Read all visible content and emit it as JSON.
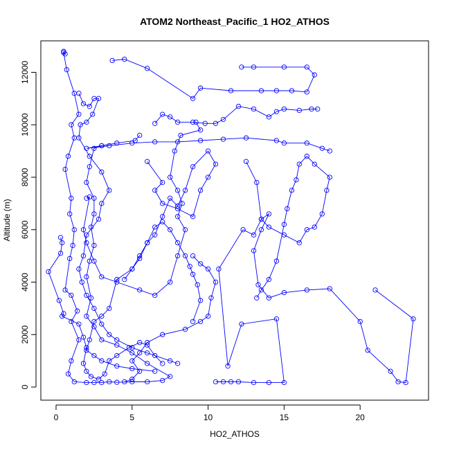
{
  "chart_data": {
    "type": "line",
    "title": "ATOM2 Northeast_Pacific_1 HO2_ATHOS",
    "xlabel": "HO2_ATHOS",
    "ylabel": "Altitude (m)",
    "xlim": [
      -1,
      24.5
    ],
    "ylim": [
      -500,
      13200
    ],
    "xticks": [
      0,
      5,
      10,
      15,
      20
    ],
    "yticks": [
      0,
      2000,
      4000,
      6000,
      8000,
      10000,
      12000
    ],
    "xtick_labels": [
      "0",
      "5",
      "10",
      "15",
      "20"
    ],
    "ytick_labels": [
      "0",
      "2000",
      "4000",
      "6000",
      "8000",
      "10000",
      "12000"
    ],
    "grid": false,
    "line_color": "#0000ff",
    "marker": "open-circle",
    "series": [
      {
        "name": "",
        "points": [
          [
            0.5,
            12800
          ],
          [
            0.6,
            12700
          ],
          [
            0.5,
            12750
          ],
          [
            0.7,
            12100
          ],
          [
            1.2,
            11200
          ],
          [
            1.5,
            10400
          ],
          [
            1.0,
            10000
          ],
          [
            1.2,
            9500
          ],
          [
            0.8,
            8800
          ],
          [
            0.6,
            8300
          ],
          [
            1.0,
            7200
          ],
          [
            0.9,
            6600
          ],
          [
            1.2,
            6000
          ],
          [
            1.1,
            5400
          ],
          [
            0.9,
            4900
          ],
          [
            0.6,
            3700
          ],
          [
            1.0,
            3500
          ],
          [
            1.4,
            2900
          ],
          [
            1.0,
            2500
          ],
          [
            1.5,
            1800
          ],
          [
            1.0,
            1000
          ],
          [
            0.8,
            500
          ],
          [
            1.2,
            200
          ],
          [
            2.0,
            170
          ],
          [
            2.5,
            170
          ],
          [
            3.0,
            170
          ],
          [
            3.5,
            200
          ],
          [
            4.0,
            180
          ],
          [
            5.0,
            200
          ],
          [
            6.0,
            200
          ],
          [
            7.0,
            250
          ],
          [
            7.5,
            400
          ],
          [
            6.0,
            900
          ],
          [
            5.0,
            1300
          ],
          [
            4.0,
            1600
          ],
          [
            3.0,
            1800
          ],
          [
            2.5,
            2300
          ],
          [
            2.0,
            2700
          ],
          [
            2.3,
            3400
          ],
          [
            2.0,
            4200
          ],
          [
            2.2,
            4800
          ],
          [
            2.5,
            5400
          ],
          [
            2.3,
            6100
          ],
          [
            2.5,
            6600
          ],
          [
            2.5,
            7200
          ],
          [
            2.0,
            7800
          ],
          [
            2.2,
            8400
          ],
          [
            2.5,
            9100
          ],
          [
            3.0,
            9200
          ]
        ]
      },
      {
        "name": "",
        "points": [
          [
            3.7,
            12450
          ],
          [
            4.5,
            12500
          ],
          [
            6.0,
            12150
          ],
          [
            9.0,
            11000
          ],
          [
            9.5,
            11400
          ],
          [
            11.5,
            11300
          ],
          [
            13.5,
            11300
          ],
          [
            14.5,
            11300
          ],
          [
            15.5,
            11300
          ],
          [
            16.5,
            11250
          ],
          [
            17.0,
            11900
          ],
          [
            16.5,
            12200
          ],
          [
            15.0,
            12200
          ],
          [
            13.0,
            12200
          ],
          [
            12.2,
            12200
          ]
        ]
      },
      {
        "name": "",
        "points": [
          [
            6.5,
            10050
          ],
          [
            7.0,
            10400
          ],
          [
            7.5,
            10300
          ],
          [
            8.0,
            10100
          ],
          [
            9.0,
            10100
          ],
          [
            9.8,
            10050
          ],
          [
            10.5,
            10050
          ],
          [
            11.0,
            10200
          ],
          [
            12.0,
            10700
          ],
          [
            13.0,
            10600
          ],
          [
            14.0,
            10300
          ],
          [
            14.5,
            10500
          ],
          [
            15.0,
            10600
          ],
          [
            16.0,
            10550
          ],
          [
            16.8,
            10600
          ],
          [
            17.2,
            10600
          ]
        ]
      },
      {
        "name": "",
        "points": [
          [
            5.5,
            9600
          ],
          [
            5.2,
            9400
          ],
          [
            4.0,
            9300
          ],
          [
            3.0,
            9200
          ],
          [
            2.0,
            9100
          ],
          [
            3.5,
            9200
          ],
          [
            5.0,
            9300
          ],
          [
            6.5,
            9350
          ],
          [
            8.0,
            9350
          ],
          [
            9.5,
            9400
          ],
          [
            11.0,
            9450
          ],
          [
            12.5,
            9500
          ],
          [
            14.5,
            9400
          ],
          [
            15.0,
            9300
          ],
          [
            16.5,
            9300
          ],
          [
            17.5,
            9100
          ],
          [
            18.0,
            9000
          ]
        ]
      },
      {
        "name": "",
        "points": [
          [
            6.0,
            8600
          ],
          [
            7.0,
            7800
          ],
          [
            6.5,
            7500
          ],
          [
            7.0,
            7000
          ],
          [
            8.0,
            6800
          ],
          [
            9.0,
            6500
          ],
          [
            9.5,
            7500
          ],
          [
            10.0,
            8000
          ],
          [
            10.5,
            8500
          ],
          [
            10.0,
            9000
          ],
          [
            9.0,
            8400
          ],
          [
            8.5,
            7500
          ],
          [
            8.0,
            6900
          ],
          [
            7.5,
            7200
          ],
          [
            7.0,
            6500
          ],
          [
            6.5,
            5800
          ],
          [
            6.0,
            5500
          ],
          [
            5.5,
            4900
          ],
          [
            5.0,
            4500
          ],
          [
            4.0,
            4100
          ],
          [
            3.5,
            3000
          ],
          [
            3.0,
            2700
          ],
          [
            2.5,
            2500
          ],
          [
            2.2,
            1800
          ],
          [
            2.0,
            1400
          ],
          [
            2.5,
            1200
          ],
          [
            3.0,
            1000
          ],
          [
            4.0,
            800
          ],
          [
            5.0,
            700
          ],
          [
            6.5,
            600
          ]
        ]
      },
      {
        "name": "",
        "points": [
          [
            9.0,
            5000
          ],
          [
            9.5,
            4700
          ],
          [
            10.0,
            4500
          ],
          [
            10.5,
            4000
          ],
          [
            10.2,
            3400
          ],
          [
            10.0,
            2700
          ],
          [
            9.5,
            2500
          ],
          [
            8.5,
            2200
          ],
          [
            7.0,
            2000
          ],
          [
            6.0,
            1700
          ],
          [
            5.5,
            1300
          ],
          [
            5.0,
            1000
          ],
          [
            5.5,
            600
          ],
          [
            5.0,
            300
          ],
          [
            4.5,
            200
          ]
        ]
      },
      {
        "name": "",
        "points": [
          [
            10.5,
            200
          ],
          [
            11.0,
            200
          ],
          [
            11.5,
            200
          ],
          [
            12.0,
            200
          ],
          [
            13.0,
            170
          ],
          [
            14.0,
            170
          ],
          [
            15.0,
            170
          ],
          [
            14.5,
            2600
          ],
          [
            12.2,
            2400
          ],
          [
            11.3,
            800
          ],
          [
            10.7,
            4500
          ],
          [
            12.3,
            6000
          ],
          [
            13.0,
            5800
          ],
          [
            13.5,
            6400
          ],
          [
            14.0,
            6600
          ],
          [
            13.5,
            6000
          ],
          [
            13.0,
            5200
          ],
          [
            13.3,
            3900
          ],
          [
            14.0,
            3400
          ],
          [
            15.0,
            3600
          ],
          [
            16.5,
            3700
          ],
          [
            18.0,
            3750
          ],
          [
            20.0,
            2500
          ],
          [
            20.5,
            1400
          ],
          [
            22.0,
            600
          ],
          [
            22.5,
            200
          ],
          [
            23.0,
            170
          ],
          [
            23.5,
            2600
          ],
          [
            21.0,
            3700
          ]
        ]
      },
      {
        "name": "",
        "points": [
          [
            12.5,
            8600
          ],
          [
            13.2,
            7800
          ],
          [
            13.5,
            6400
          ],
          [
            14.0,
            6100
          ],
          [
            15.0,
            5800
          ],
          [
            16.0,
            5500
          ],
          [
            16.5,
            6000
          ],
          [
            17.0,
            6100
          ],
          [
            17.5,
            6600
          ],
          [
            17.8,
            7500
          ],
          [
            18.0,
            8000
          ],
          [
            17.0,
            8500
          ],
          [
            16.5,
            8800
          ],
          [
            16.0,
            8500
          ],
          [
            15.8,
            7900
          ],
          [
            15.5,
            7500
          ],
          [
            15.2,
            6800
          ],
          [
            15.0,
            6200
          ],
          [
            14.5,
            4800
          ],
          [
            14.0,
            4100
          ],
          [
            13.5,
            3700
          ],
          [
            13.2,
            3400
          ]
        ]
      },
      {
        "name": "",
        "points": [
          [
            0.3,
            5700
          ],
          [
            0.4,
            5500
          ],
          [
            0.3,
            5100
          ],
          [
            -0.5,
            4400
          ],
          [
            0.2,
            3300
          ],
          [
            0.5,
            2800
          ],
          [
            0.4,
            2700
          ],
          [
            1.5,
            2400
          ],
          [
            1.8,
            1900
          ],
          [
            2.0,
            1500
          ],
          [
            1.8,
            900
          ],
          [
            2.0,
            600
          ],
          [
            2.3,
            400
          ],
          [
            2.8,
            300
          ],
          [
            3.2,
            500
          ],
          [
            3.5,
            1000
          ],
          [
            4.0,
            1200
          ],
          [
            4.8,
            1500
          ],
          [
            5.5,
            1700
          ],
          [
            6.0,
            1600
          ],
          [
            6.5,
            1200
          ],
          [
            7.0,
            900
          ]
        ]
      },
      {
        "name": "",
        "points": [
          [
            2.0,
            7200
          ],
          [
            2.2,
            7250
          ],
          [
            1.8,
            6000
          ],
          [
            2.0,
            5500
          ],
          [
            2.5,
            4800
          ],
          [
            3.0,
            4200
          ],
          [
            4.0,
            4000
          ],
          [
            5.5,
            3700
          ],
          [
            6.5,
            3500
          ],
          [
            7.5,
            4000
          ],
          [
            8.0,
            5000
          ],
          [
            8.5,
            6000
          ],
          [
            8.0,
            6500
          ],
          [
            8.3,
            7000
          ],
          [
            8.0,
            7500
          ],
          [
            7.5,
            8000
          ],
          [
            7.8,
            9000
          ],
          [
            8.2,
            9600
          ],
          [
            9.5,
            9800
          ],
          [
            9.2,
            10100
          ]
        ]
      },
      {
        "name": "",
        "points": [
          [
            1.5,
            11200
          ],
          [
            1.8,
            10800
          ],
          [
            2.2,
            10700
          ],
          [
            2.5,
            11000
          ],
          [
            2.8,
            11000
          ],
          [
            2.4,
            10400
          ],
          [
            2.0,
            10100
          ],
          [
            1.6,
            10000
          ],
          [
            1.5,
            9500
          ],
          [
            2.2,
            8800
          ],
          [
            3.0,
            8200
          ],
          [
            3.5,
            7500
          ],
          [
            3.0,
            7000
          ],
          [
            2.8,
            6400
          ],
          [
            2.0,
            5800
          ],
          [
            1.8,
            5000
          ],
          [
            1.5,
            4500
          ],
          [
            1.7,
            4000
          ],
          [
            2.0,
            3500
          ],
          [
            2.5,
            3000
          ],
          [
            3.0,
            2400
          ],
          [
            3.5,
            2000
          ],
          [
            4.0,
            1800
          ],
          [
            5.0,
            1500
          ],
          [
            6.0,
            1300
          ],
          [
            7.5,
            1000
          ],
          [
            8.0,
            900
          ]
        ]
      },
      {
        "name": "",
        "points": [
          [
            4.5,
            4100
          ],
          [
            5.0,
            4500
          ],
          [
            5.5,
            5000
          ],
          [
            6.0,
            5500
          ],
          [
            6.5,
            6100
          ],
          [
            7.0,
            6300
          ],
          [
            7.5,
            6000
          ],
          [
            8.0,
            5500
          ],
          [
            8.5,
            5000
          ],
          [
            8.8,
            4600
          ],
          [
            9.0,
            4300
          ],
          [
            9.3,
            3900
          ],
          [
            9.5,
            3300
          ],
          [
            9.0,
            2500
          ]
        ]
      }
    ]
  }
}
